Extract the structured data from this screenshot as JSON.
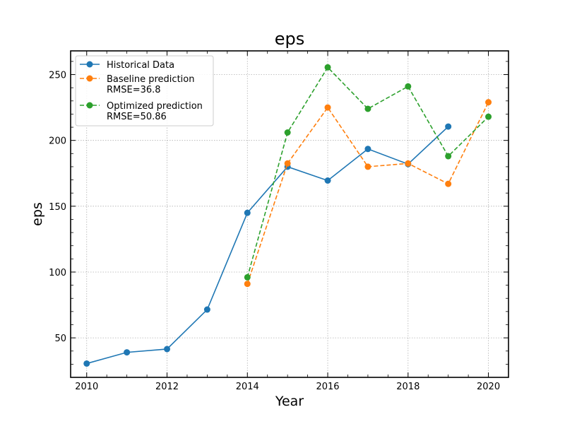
{
  "chart_data": {
    "type": "line",
    "title": "eps",
    "xlabel": "Year",
    "ylabel": "eps",
    "xlim": [
      2009.6,
      2020.5
    ],
    "ylim": [
      20,
      268
    ],
    "xticks": [
      2010,
      2012,
      2014,
      2016,
      2018,
      2020
    ],
    "yticks": [
      50,
      100,
      150,
      200,
      250
    ],
    "grid": true,
    "legend_position": "top-left",
    "series": [
      {
        "name": "Historical Data",
        "color": "#1f77b4",
        "linestyle": "solid",
        "x": [
          2010,
          2011,
          2012,
          2013,
          2014,
          2015,
          2016,
          2017,
          2018,
          2019
        ],
        "y": [
          30.5,
          39,
          41.5,
          71.5,
          145,
          180,
          169.5,
          193.5,
          182,
          210.5
        ]
      },
      {
        "name": "Baseline prediction\nRMSE=36.8",
        "color": "#ff7f0e",
        "linestyle": "dashed",
        "x": [
          2014,
          2015,
          2016,
          2017,
          2018,
          2019,
          2020
        ],
        "y": [
          91,
          182.5,
          225,
          180,
          182.5,
          167,
          229
        ]
      },
      {
        "name": "Optimized prediction\nRMSE=50.86",
        "color": "#2ca02c",
        "linestyle": "dashed",
        "x": [
          2014,
          2015,
          2016,
          2017,
          2018,
          2019,
          2020
        ],
        "y": [
          96,
          206,
          255.5,
          224,
          241,
          188,
          218
        ]
      }
    ]
  }
}
